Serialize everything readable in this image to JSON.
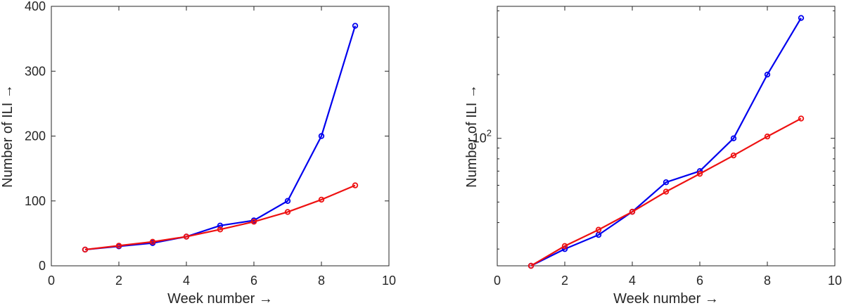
{
  "chart_data": [
    {
      "type": "line",
      "xlabel": "Week number →",
      "ylabel": "Number of ILI →",
      "xlim": [
        0,
        10
      ],
      "ylim": [
        0,
        400
      ],
      "yscale": "linear",
      "grid": false,
      "x_ticks": [
        0,
        2,
        4,
        6,
        8,
        10
      ],
      "x_tick_labels": [
        "0",
        "2",
        "4",
        "6",
        "8",
        "10"
      ],
      "y_ticks": [
        0,
        100,
        200,
        300,
        400
      ],
      "y_tick_labels": [
        "0",
        "100",
        "200",
        "300",
        "400"
      ],
      "x": [
        1,
        2,
        3,
        4,
        5,
        6,
        7,
        8,
        9
      ],
      "series": [
        {
          "color": "#0000ee",
          "marker": "circle",
          "values": [
            25,
            30,
            35,
            45,
            62,
            70,
            100,
            200,
            370
          ]
        },
        {
          "color": "#ee1111",
          "marker": "circle",
          "values": [
            25,
            31,
            37,
            45,
            56,
            68,
            83,
            102,
            124
          ]
        }
      ]
    },
    {
      "type": "line",
      "xlabel": "Week number →",
      "ylabel": "Number of ILI →",
      "xlim": [
        0,
        10
      ],
      "ylim": [
        25,
        420
      ],
      "yscale": "log",
      "grid": false,
      "x_ticks": [
        0,
        2,
        4,
        6,
        8,
        10
      ],
      "x_tick_labels": [
        "0",
        "2",
        "4",
        "6",
        "8",
        "10"
      ],
      "y_ticks": [
        100
      ],
      "y_tick_labels": [
        "10^2"
      ],
      "x": [
        1,
        2,
        3,
        4,
        5,
        6,
        7,
        8,
        9
      ],
      "series": [
        {
          "color": "#0000ee",
          "marker": "circle",
          "values": [
            25,
            30,
            35,
            45,
            62,
            70,
            100,
            200,
            370
          ]
        },
        {
          "color": "#ee1111",
          "marker": "circle",
          "values": [
            25,
            31,
            37,
            45,
            56,
            68,
            83,
            102,
            124
          ]
        }
      ]
    }
  ]
}
